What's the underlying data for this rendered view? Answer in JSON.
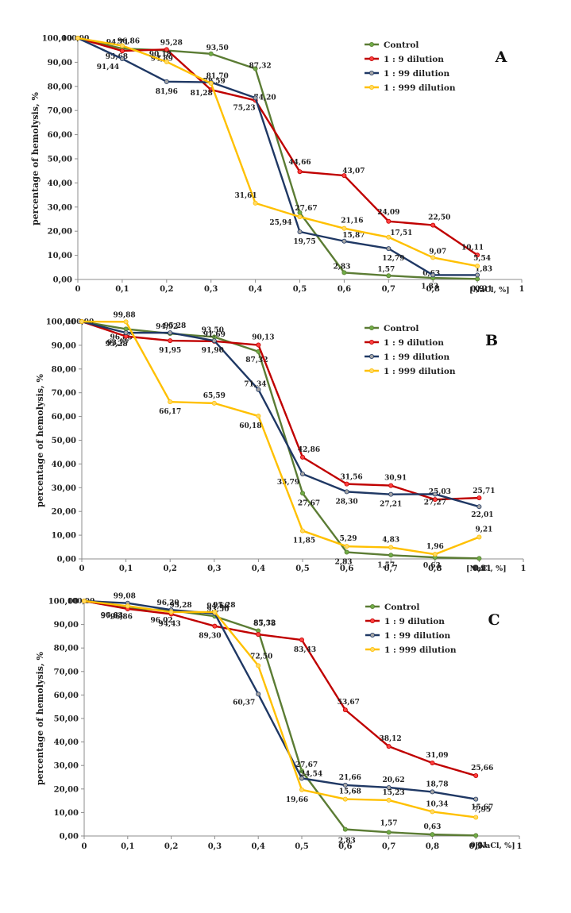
{
  "colors": {
    "control": "#5b7c34",
    "d9": "#c00000",
    "d99": "#1f3864",
    "d999": "#ffc000",
    "marker_control": "#70ad47",
    "marker_d9": "#ff4040",
    "marker_d99": "#a6a6a6",
    "marker_d999": "#ffd966"
  },
  "chart_data": [
    {
      "type": "line",
      "panel_letter": "A",
      "ylabel": "percentage of hemolysis, %",
      "xlabel": "[NaCl, %]",
      "ylim": [
        0,
        100
      ],
      "xlim": [
        0,
        1
      ],
      "yticks": [
        "0,00",
        "10,00",
        "20,00",
        "30,00",
        "40,00",
        "50,00",
        "60,00",
        "70,00",
        "80,00",
        "90,00",
        "100,00"
      ],
      "xticks": [
        "0",
        "0,1",
        "0,2",
        "0,3",
        "0,4",
        "0,5",
        "0,6",
        "0,7",
        "0,8",
        "0,9",
        "1"
      ],
      "x": [
        0,
        0.1,
        0.2,
        0.3,
        0.4,
        0.5,
        0.6,
        0.7,
        0.8,
        0.9
      ],
      "series": [
        {
          "name": "Control",
          "key": "control",
          "values": [
            100,
            95.68,
            94.89,
            93.5,
            87.32,
            27.67,
            2.83,
            1.57,
            0.63,
            0.21
          ],
          "labels": [
            "100,00",
            "95,68",
            "94,89",
            "93,50",
            "87,32",
            "27,67",
            "2,83",
            "1,57",
            "0,63",
            "0,21"
          ]
        },
        {
          "name": "1 : 9 dilution",
          "key": "d9",
          "values": [
            100,
            94.71,
            95.28,
            78.59,
            74.2,
            44.66,
            43.07,
            24.09,
            22.5,
            10.11
          ],
          "labels": [
            "",
            "94,71",
            "95,28",
            "78,59",
            "74,20",
            "44,66",
            "43,07",
            "24,09",
            "22,50",
            "10,11"
          ]
        },
        {
          "name": "1 : 99 dilution",
          "key": "d99",
          "values": [
            100,
            91.44,
            81.96,
            81.7,
            75.23,
            19.75,
            15.87,
            12.79,
            1.83,
            1.83
          ],
          "labels": [
            "",
            "91,44",
            "81,96",
            "81,70",
            "75,23",
            "19,75",
            "15,87",
            "12,79",
            "1,83",
            "1,83"
          ]
        },
        {
          "name": "1 : 999 dilution",
          "key": "d999",
          "values": [
            100,
            96.86,
            90.18,
            81.28,
            31.61,
            25.94,
            21.16,
            17.51,
            9.07,
            5.54
          ],
          "labels": [
            "",
            "96,86",
            "90,18",
            "81,28",
            "31,61",
            "25,94",
            "21,16",
            "17,51",
            "9,07",
            "5,54"
          ]
        }
      ]
    },
    {
      "type": "line",
      "panel_letter": "B",
      "ylabel": "percentage of hemolysis, %",
      "xlabel": "[NaCl, %]",
      "ylim": [
        0,
        100
      ],
      "xlim": [
        0,
        1
      ],
      "yticks": [
        "0,00",
        "10,00",
        "20,00",
        "30,00",
        "40,00",
        "50,00",
        "60,00",
        "70,00",
        "80,00",
        "90,00",
        "100,00"
      ],
      "xticks": [
        "0",
        "0,1",
        "0,2",
        "0,3",
        "0,4",
        "0,5",
        "0,6",
        "0,7",
        "0,8",
        "0,9",
        "1"
      ],
      "x": [
        0,
        0.1,
        0.2,
        0.3,
        0.4,
        0.5,
        0.6,
        0.7,
        0.8,
        0.9
      ],
      "series": [
        {
          "name": "Control",
          "key": "control",
          "values": [
            100,
            96.86,
            94.92,
            93.5,
            87.32,
            27.67,
            2.83,
            1.57,
            0.63,
            0.21
          ],
          "labels": [
            "100,00",
            "96,86",
            "94,92",
            "93,50",
            "87,32",
            "27,67",
            "2,83",
            "1,57",
            "0,63",
            "0,21"
          ]
        },
        {
          "name": "1 : 9 dilution",
          "key": "d9",
          "values": [
            100,
            93.77,
            91.95,
            91.69,
            90.13,
            42.86,
            31.56,
            30.91,
            25.03,
            25.71
          ],
          "labels": [
            "",
            "93,77",
            "91,95",
            "91,69",
            "90,13",
            "42,86",
            "31,56",
            "30,91",
            "25,03",
            "25,71"
          ]
        },
        {
          "name": "1 : 99 dilution",
          "key": "d99",
          "values": [
            100,
            95.28,
            95.28,
            91.9,
            71.34,
            35.79,
            28.3,
            27.21,
            27.27,
            22.01
          ],
          "labels": [
            "",
            "95,28",
            "95,28",
            "91,90",
            "71,34",
            "35,79",
            "28,30",
            "27,21",
            "27,27",
            "22,01"
          ]
        },
        {
          "name": "1 : 999 dilution",
          "key": "d999",
          "values": [
            100,
            99.88,
            66.17,
            65.59,
            60.18,
            11.85,
            5.29,
            4.83,
            1.96,
            9.21
          ],
          "labels": [
            "",
            "99,88",
            "66,17",
            "65,59",
            "60,18",
            "11,85",
            "5,29",
            "4,83",
            "1,96",
            "9,21"
          ]
        }
      ]
    },
    {
      "type": "line",
      "panel_letter": "C",
      "ylabel": "percentage of hemolysis, %",
      "xlabel": "[NaCl, %]",
      "ylim": [
        0,
        100
      ],
      "xlim": [
        0,
        1
      ],
      "yticks": [
        "0,00",
        "10,00",
        "20,00",
        "30,00",
        "40,00",
        "50,00",
        "60,00",
        "70,00",
        "80,00",
        "90,00",
        "100,00"
      ],
      "xticks": [
        "0",
        "0,1",
        "0,2",
        "0,3",
        "0,4",
        "0,5",
        "0,6",
        "0,7",
        "0,8",
        "0,9",
        "1"
      ],
      "x": [
        0,
        0.1,
        0.2,
        0.3,
        0.4,
        0.5,
        0.6,
        0.7,
        0.8,
        0.9
      ],
      "series": [
        {
          "name": "Control",
          "key": "control",
          "values": [
            100,
            96.86,
            96.02,
            93.5,
            87.32,
            27.67,
            2.83,
            1.57,
            0.63,
            0.21
          ],
          "labels": [
            "100,00",
            "96,86",
            "96,02",
            "93,50",
            "87,32",
            "27,67",
            "2,83",
            "1,57",
            "0,63",
            "0,21"
          ]
        },
        {
          "name": "1 : 9 dilution",
          "key": "d9",
          "values": [
            100,
            96.63,
            94.43,
            89.3,
            85.78,
            83.43,
            53.67,
            38.12,
            31.09,
            25.66
          ],
          "labels": [
            "",
            "96,63",
            "94,43",
            "89,30",
            "85,78",
            "83,43",
            "53,67",
            "38,12",
            "31,09",
            "25,66"
          ]
        },
        {
          "name": "1 : 99 dilution",
          "key": "d99",
          "values": [
            100,
            99.08,
            96.2,
            94.66,
            60.37,
            24.54,
            21.66,
            20.62,
            18.78,
            15.67
          ],
          "labels": [
            "",
            "99,08",
            "96,20",
            "94,66",
            "60,37",
            "24,54",
            "21,66",
            "20,62",
            "18,78",
            "15,67"
          ]
        },
        {
          "name": "1 : 999 dilution",
          "key": "d999",
          "values": [
            100,
            97.84,
            95.28,
            95.28,
            72.5,
            19.66,
            15.68,
            15.23,
            10.34,
            7.95
          ],
          "labels": [
            "",
            "97,84",
            "95,28",
            "95,28",
            "72,50",
            "19,66",
            "15,68",
            "15,23",
            "10,34",
            "7,95"
          ]
        }
      ]
    }
  ]
}
